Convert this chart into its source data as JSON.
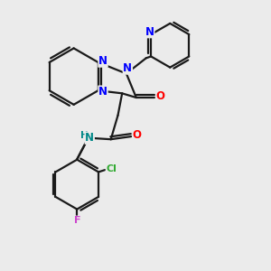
{
  "background_color": "#ebebeb",
  "bond_color": "#1a1a1a",
  "nitrogen_color": "#0000ff",
  "oxygen_color": "#ff0000",
  "chlorine_color": "#33aa33",
  "fluorine_color": "#cc44cc",
  "hn_color": "#008888",
  "line_width": 1.6,
  "fig_size": [
    3.0,
    3.0
  ],
  "dpi": 100,
  "xlim": [
    0,
    10
  ],
  "ylim": [
    0,
    10
  ]
}
